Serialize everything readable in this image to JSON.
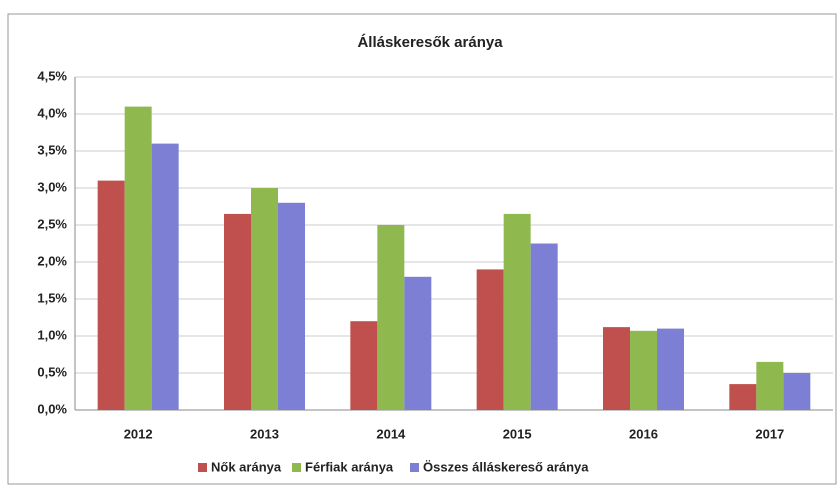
{
  "chart_data": {
    "type": "bar",
    "title": "Álláskeresők aránya",
    "categories": [
      "2012",
      "2013",
      "2014",
      "2015",
      "2016",
      "2017"
    ],
    "series": [
      {
        "name": "Nők aránya",
        "color": "#c0504d",
        "values": [
          3.1,
          2.65,
          1.2,
          1.9,
          1.12,
          0.35
        ]
      },
      {
        "name": "Férfiak aránya",
        "color": "#8fb84f",
        "values": [
          4.1,
          3.0,
          2.5,
          2.65,
          1.07,
          0.65
        ]
      },
      {
        "name": "Összes álláskereső aránya",
        "color": "#7c7fd4",
        "values": [
          3.6,
          2.8,
          1.8,
          2.25,
          1.1,
          0.5
        ]
      }
    ],
    "ylim": [
      0,
      4.5
    ],
    "yticks": [
      {
        "value": 0,
        "label": "0,0%"
      },
      {
        "value": 0.5,
        "label": "0,5%"
      },
      {
        "value": 1,
        "label": "1,0%"
      },
      {
        "value": 1.5,
        "label": "1,5%"
      },
      {
        "value": 2,
        "label": "2,0%"
      },
      {
        "value": 2.5,
        "label": "2,5%"
      },
      {
        "value": 3,
        "label": "3,0%"
      },
      {
        "value": 3.5,
        "label": "3,5%"
      },
      {
        "value": 4,
        "label": "4,0%"
      },
      {
        "value": 4.5,
        "label": "4,5%"
      }
    ],
    "grid": true,
    "legend": "bottom"
  }
}
